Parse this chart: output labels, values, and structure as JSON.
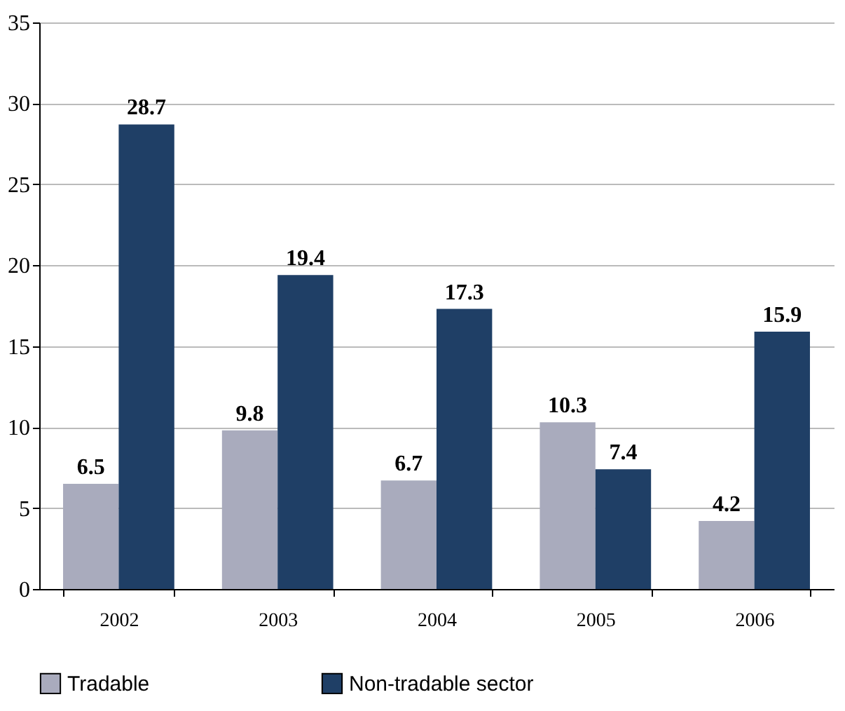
{
  "chart_data": {
    "type": "bar",
    "categories": [
      "2002",
      "2003",
      "2004",
      "2005",
      "2006"
    ],
    "series": [
      {
        "name": "Tradable",
        "color": "#a9abbd",
        "values": [
          6.5,
          9.8,
          6.7,
          10.3,
          4.2
        ]
      },
      {
        "name": "Non-tradable sector",
        "color": "#1f3f66",
        "values": [
          28.7,
          19.4,
          17.3,
          7.4,
          15.9
        ]
      }
    ],
    "ylim": [
      0,
      35
    ],
    "yticks": [
      0,
      5,
      10,
      15,
      20,
      25,
      30,
      35
    ],
    "grid": "y",
    "legend": "bottom",
    "data_labels": true
  }
}
